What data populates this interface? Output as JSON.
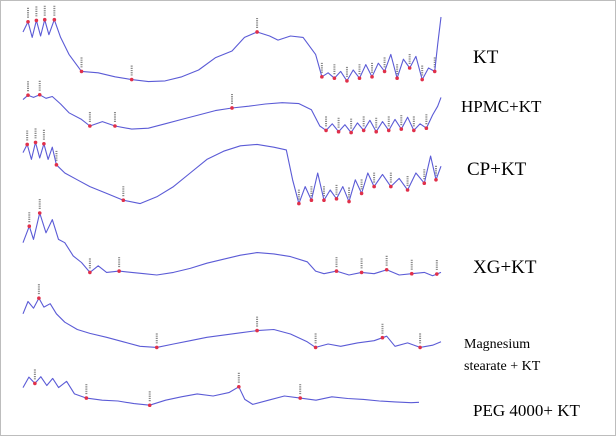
{
  "chart_data": {
    "type": "line",
    "title": "",
    "xlabel": "",
    "ylabel": "",
    "grid": false,
    "legend": "right",
    "line_color": "#5b5bd6",
    "marker_color": "#e0304a",
    "x_range": [
      0,
      1
    ],
    "x_direction": "normalized position from left edge of the trace",
    "series": [
      {
        "name": "KT",
        "y_range": [
          0,
          1
        ],
        "points": [
          [
            0.0,
            0.78
          ],
          [
            0.012,
            0.93
          ],
          [
            0.022,
            0.7
          ],
          [
            0.032,
            0.95
          ],
          [
            0.042,
            0.72
          ],
          [
            0.052,
            0.96
          ],
          [
            0.062,
            0.74
          ],
          [
            0.075,
            0.96
          ],
          [
            0.09,
            0.7
          ],
          [
            0.11,
            0.45
          ],
          [
            0.14,
            0.2
          ],
          [
            0.18,
            0.18
          ],
          [
            0.22,
            0.12
          ],
          [
            0.26,
            0.08
          ],
          [
            0.3,
            0.05
          ],
          [
            0.34,
            0.06
          ],
          [
            0.38,
            0.12
          ],
          [
            0.42,
            0.22
          ],
          [
            0.46,
            0.4
          ],
          [
            0.5,
            0.5
          ],
          [
            0.53,
            0.7
          ],
          [
            0.56,
            0.78
          ],
          [
            0.59,
            0.72
          ],
          [
            0.61,
            0.66
          ],
          [
            0.64,
            0.72
          ],
          [
            0.67,
            0.7
          ],
          [
            0.7,
            0.45
          ],
          [
            0.715,
            0.12
          ],
          [
            0.73,
            0.18
          ],
          [
            0.745,
            0.1
          ],
          [
            0.76,
            0.2
          ],
          [
            0.775,
            0.06
          ],
          [
            0.79,
            0.22
          ],
          [
            0.805,
            0.1
          ],
          [
            0.82,
            0.3
          ],
          [
            0.835,
            0.12
          ],
          [
            0.85,
            0.32
          ],
          [
            0.865,
            0.2
          ],
          [
            0.88,
            0.45
          ],
          [
            0.895,
            0.1
          ],
          [
            0.91,
            0.38
          ],
          [
            0.925,
            0.25
          ],
          [
            0.94,
            0.42
          ],
          [
            0.955,
            0.08
          ],
          [
            0.97,
            0.25
          ],
          [
            0.985,
            0.2
          ],
          [
            0.992,
            0.6
          ],
          [
            1.0,
            1.0
          ]
        ],
        "markers": [
          0.012,
          0.032,
          0.052,
          0.075,
          0.14,
          0.26,
          0.56,
          0.715,
          0.745,
          0.775,
          0.805,
          0.835,
          0.865,
          0.895,
          0.925,
          0.955,
          0.985
        ]
      },
      {
        "name": "HPMC+KT",
        "y_range": [
          0,
          1
        ],
        "points": [
          [
            0.0,
            0.85
          ],
          [
            0.012,
            0.95
          ],
          [
            0.025,
            0.9
          ],
          [
            0.04,
            0.96
          ],
          [
            0.055,
            0.88
          ],
          [
            0.07,
            0.92
          ],
          [
            0.09,
            0.75
          ],
          [
            0.11,
            0.55
          ],
          [
            0.14,
            0.4
          ],
          [
            0.16,
            0.25
          ],
          [
            0.19,
            0.35
          ],
          [
            0.22,
            0.25
          ],
          [
            0.26,
            0.18
          ],
          [
            0.3,
            0.2
          ],
          [
            0.34,
            0.3
          ],
          [
            0.38,
            0.4
          ],
          [
            0.42,
            0.5
          ],
          [
            0.46,
            0.6
          ],
          [
            0.5,
            0.66
          ],
          [
            0.54,
            0.7
          ],
          [
            0.58,
            0.75
          ],
          [
            0.62,
            0.78
          ],
          [
            0.66,
            0.76
          ],
          [
            0.69,
            0.62
          ],
          [
            0.71,
            0.25
          ],
          [
            0.725,
            0.15
          ],
          [
            0.74,
            0.3
          ],
          [
            0.755,
            0.12
          ],
          [
            0.77,
            0.28
          ],
          [
            0.785,
            0.1
          ],
          [
            0.8,
            0.32
          ],
          [
            0.815,
            0.15
          ],
          [
            0.83,
            0.38
          ],
          [
            0.845,
            0.12
          ],
          [
            0.86,
            0.35
          ],
          [
            0.875,
            0.15
          ],
          [
            0.89,
            0.4
          ],
          [
            0.905,
            0.18
          ],
          [
            0.92,
            0.45
          ],
          [
            0.935,
            0.15
          ],
          [
            0.95,
            0.3
          ],
          [
            0.965,
            0.2
          ],
          [
            0.98,
            0.5
          ],
          [
            0.992,
            0.7
          ],
          [
            1.0,
            0.9
          ]
        ],
        "markers": [
          0.012,
          0.04,
          0.16,
          0.22,
          0.5,
          0.725,
          0.755,
          0.785,
          0.815,
          0.845,
          0.875,
          0.905,
          0.935,
          0.965
        ]
      },
      {
        "name": "CP+KT",
        "y_range": [
          0,
          1
        ],
        "points": [
          [
            0.0,
            0.8
          ],
          [
            0.01,
            0.92
          ],
          [
            0.02,
            0.7
          ],
          [
            0.03,
            0.95
          ],
          [
            0.04,
            0.72
          ],
          [
            0.05,
            0.93
          ],
          [
            0.06,
            0.7
          ],
          [
            0.07,
            0.88
          ],
          [
            0.08,
            0.62
          ],
          [
            0.1,
            0.5
          ],
          [
            0.13,
            0.4
          ],
          [
            0.16,
            0.3
          ],
          [
            0.2,
            0.2
          ],
          [
            0.24,
            0.1
          ],
          [
            0.28,
            0.05
          ],
          [
            0.32,
            0.15
          ],
          [
            0.36,
            0.3
          ],
          [
            0.4,
            0.5
          ],
          [
            0.44,
            0.7
          ],
          [
            0.48,
            0.82
          ],
          [
            0.52,
            0.9
          ],
          [
            0.56,
            0.92
          ],
          [
            0.6,
            0.88
          ],
          [
            0.63,
            0.84
          ],
          [
            0.645,
            0.4
          ],
          [
            0.66,
            0.05
          ],
          [
            0.675,
            0.3
          ],
          [
            0.69,
            0.1
          ],
          [
            0.705,
            0.5
          ],
          [
            0.72,
            0.1
          ],
          [
            0.735,
            0.25
          ],
          [
            0.75,
            0.12
          ],
          [
            0.765,
            0.3
          ],
          [
            0.78,
            0.08
          ],
          [
            0.795,
            0.4
          ],
          [
            0.81,
            0.2
          ],
          [
            0.825,
            0.5
          ],
          [
            0.84,
            0.3
          ],
          [
            0.86,
            0.48
          ],
          [
            0.88,
            0.3
          ],
          [
            0.9,
            0.42
          ],
          [
            0.92,
            0.25
          ],
          [
            0.94,
            0.5
          ],
          [
            0.96,
            0.35
          ],
          [
            0.975,
            0.75
          ],
          [
            0.988,
            0.4
          ],
          [
            1.0,
            0.6
          ]
        ],
        "markers": [
          0.01,
          0.03,
          0.05,
          0.08,
          0.24,
          0.66,
          0.69,
          0.72,
          0.75,
          0.78,
          0.81,
          0.84,
          0.88,
          0.92,
          0.96,
          0.988
        ]
      },
      {
        "name": "XG+KT",
        "y_range": [
          0,
          1
        ],
        "points": [
          [
            0.0,
            0.55
          ],
          [
            0.015,
            0.8
          ],
          [
            0.025,
            0.6
          ],
          [
            0.04,
            1.0
          ],
          [
            0.055,
            0.7
          ],
          [
            0.07,
            0.9
          ],
          [
            0.085,
            0.6
          ],
          [
            0.1,
            0.55
          ],
          [
            0.12,
            0.35
          ],
          [
            0.14,
            0.25
          ],
          [
            0.16,
            0.1
          ],
          [
            0.18,
            0.2
          ],
          [
            0.2,
            0.1
          ],
          [
            0.23,
            0.12
          ],
          [
            0.26,
            0.1
          ],
          [
            0.29,
            0.08
          ],
          [
            0.32,
            0.06
          ],
          [
            0.36,
            0.1
          ],
          [
            0.4,
            0.16
          ],
          [
            0.44,
            0.24
          ],
          [
            0.48,
            0.3
          ],
          [
            0.52,
            0.36
          ],
          [
            0.56,
            0.4
          ],
          [
            0.6,
            0.38
          ],
          [
            0.64,
            0.34
          ],
          [
            0.68,
            0.26
          ],
          [
            0.7,
            0.12
          ],
          [
            0.72,
            0.08
          ],
          [
            0.75,
            0.12
          ],
          [
            0.78,
            0.06
          ],
          [
            0.81,
            0.1
          ],
          [
            0.84,
            0.08
          ],
          [
            0.87,
            0.14
          ],
          [
            0.9,
            0.06
          ],
          [
            0.93,
            0.08
          ],
          [
            0.96,
            0.1
          ],
          [
            0.98,
            0.05
          ],
          [
            1.0,
            0.1
          ]
        ],
        "markers": [
          0.015,
          0.04,
          0.16,
          0.23,
          0.75,
          0.81,
          0.87,
          0.93,
          0.99
        ]
      },
      {
        "name": "Magnesium stearate + KT",
        "y_range": [
          0,
          1
        ],
        "points": [
          [
            0.0,
            0.7
          ],
          [
            0.012,
            0.92
          ],
          [
            0.025,
            0.8
          ],
          [
            0.038,
            0.98
          ],
          [
            0.05,
            0.82
          ],
          [
            0.065,
            0.88
          ],
          [
            0.08,
            0.7
          ],
          [
            0.1,
            0.55
          ],
          [
            0.13,
            0.42
          ],
          [
            0.16,
            0.35
          ],
          [
            0.2,
            0.28
          ],
          [
            0.24,
            0.2
          ],
          [
            0.28,
            0.12
          ],
          [
            0.32,
            0.1
          ],
          [
            0.36,
            0.16
          ],
          [
            0.4,
            0.22
          ],
          [
            0.44,
            0.28
          ],
          [
            0.48,
            0.32
          ],
          [
            0.52,
            0.36
          ],
          [
            0.56,
            0.4
          ],
          [
            0.6,
            0.42
          ],
          [
            0.64,
            0.34
          ],
          [
            0.68,
            0.2
          ],
          [
            0.7,
            0.1
          ],
          [
            0.73,
            0.16
          ],
          [
            0.76,
            0.12
          ],
          [
            0.8,
            0.18
          ],
          [
            0.84,
            0.22
          ],
          [
            0.87,
            0.3
          ],
          [
            0.89,
            0.12
          ],
          [
            0.92,
            0.18
          ],
          [
            0.95,
            0.1
          ],
          [
            0.98,
            0.14
          ],
          [
            1.0,
            0.2
          ]
        ],
        "markers": [
          0.038,
          0.32,
          0.56,
          0.7,
          0.86,
          0.95
        ]
      },
      {
        "name": "PEG 4000+ KT",
        "y_range": [
          0,
          1
        ],
        "points": [
          [
            0.0,
            0.7
          ],
          [
            0.015,
            0.95
          ],
          [
            0.03,
            0.8
          ],
          [
            0.045,
            0.96
          ],
          [
            0.06,
            0.75
          ],
          [
            0.075,
            0.92
          ],
          [
            0.09,
            0.7
          ],
          [
            0.11,
            0.85
          ],
          [
            0.13,
            0.55
          ],
          [
            0.16,
            0.45
          ],
          [
            0.2,
            0.4
          ],
          [
            0.24,
            0.38
          ],
          [
            0.28,
            0.32
          ],
          [
            0.32,
            0.28
          ],
          [
            0.36,
            0.4
          ],
          [
            0.4,
            0.48
          ],
          [
            0.44,
            0.55
          ],
          [
            0.48,
            0.5
          ],
          [
            0.52,
            0.58
          ],
          [
            0.545,
            0.72
          ],
          [
            0.56,
            0.42
          ],
          [
            0.58,
            0.3
          ],
          [
            0.62,
            0.4
          ],
          [
            0.66,
            0.5
          ],
          [
            0.7,
            0.45
          ],
          [
            0.74,
            0.4
          ],
          [
            0.78,
            0.48
          ],
          [
            0.82,
            0.44
          ],
          [
            0.86,
            0.42
          ],
          [
            0.9,
            0.38
          ],
          [
            0.94,
            0.36
          ],
          [
            0.98,
            0.34
          ],
          [
            1.0,
            0.35
          ]
        ],
        "markers": [
          0.03,
          0.16,
          0.32,
          0.545,
          0.7
        ]
      }
    ]
  },
  "labels": {
    "l0": "KT",
    "l1": "HPMC+KT",
    "l2": "CP+KT",
    "l3": "XG+KT",
    "l4a": "Magnesium",
    "l4b": "stearate + KT",
    "l5": "PEG 4000+ KT"
  }
}
